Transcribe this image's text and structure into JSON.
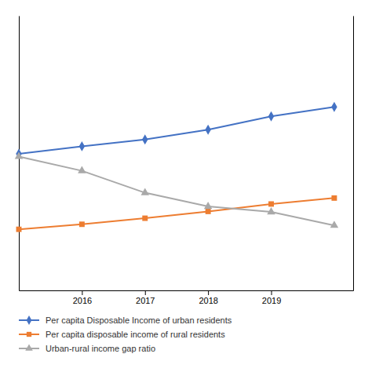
{
  "chart_data": {
    "type": "line",
    "x": [
      2015,
      2016,
      2017,
      2018,
      2019,
      2020
    ],
    "series": [
      {
        "name": "Per capita Disposable Income of urban residents",
        "color": "#4472C4",
        "marker": "diamond",
        "values": [
          47251,
          49832,
          52185,
          55574,
          60182,
          63438
        ]
      },
      {
        "name": "Per capita disposable income of rural residents",
        "color": "#ED7D31",
        "marker": "square",
        "values": [
          21125,
          22866,
          24956,
          27307,
          29876,
          31930
        ]
      },
      {
        "name": "Urban-rural income gap ratio",
        "color": "#A9A9A9",
        "marker": "triangle",
        "axis": "y2",
        "values": [
          2.236,
          2.179,
          2.091,
          2.036,
          2.014,
          1.96
        ]
      }
    ],
    "xlim": [
      2015.0,
      2020.3
    ],
    "xticks": [
      2016,
      2017,
      2018,
      2019
    ],
    "ylim": [
      0,
      95000
    ],
    "y2lim": [
      1.7,
      2.8
    ],
    "tick_labels": "x",
    "legend": "bottom"
  }
}
